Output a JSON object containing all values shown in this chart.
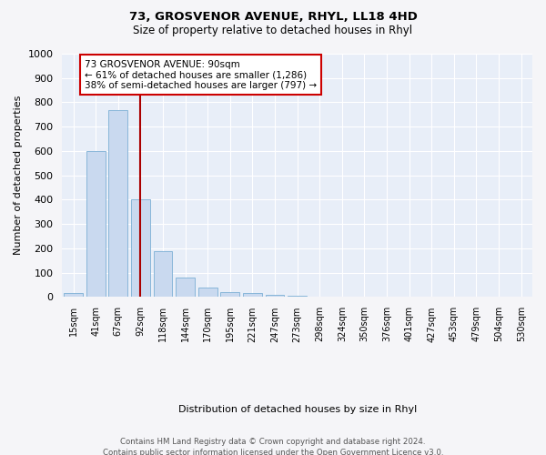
{
  "title1": "73, GROSVENOR AVENUE, RHYL, LL18 4HD",
  "title2": "Size of property relative to detached houses in Rhyl",
  "xlabel": "Distribution of detached houses by size in Rhyl",
  "ylabel": "Number of detached properties",
  "footnote1": "Contains HM Land Registry data © Crown copyright and database right 2024.",
  "footnote2": "Contains public sector information licensed under the Open Government Licence v3.0.",
  "annotation_line1": "73 GROSVENOR AVENUE: 90sqm",
  "annotation_line2": "← 61% of detached houses are smaller (1,286)",
  "annotation_line3": "38% of semi-detached houses are larger (797) →",
  "bar_labels": [
    "15sqm",
    "41sqm",
    "67sqm",
    "92sqm",
    "118sqm",
    "144sqm",
    "170sqm",
    "195sqm",
    "221sqm",
    "247sqm",
    "273sqm",
    "298sqm",
    "324sqm",
    "350sqm",
    "376sqm",
    "401sqm",
    "427sqm",
    "453sqm",
    "479sqm",
    "504sqm",
    "530sqm"
  ],
  "bar_values": [
    15,
    600,
    770,
    400,
    190,
    80,
    40,
    20,
    15,
    10,
    5,
    0,
    0,
    0,
    0,
    0,
    0,
    0,
    0,
    0,
    0
  ],
  "bar_color": "#c9d9ef",
  "bar_edge_color": "#7bafd4",
  "vline_x": 3,
  "vline_color": "#aa0000",
  "ylim": [
    0,
    1000
  ],
  "yticks": [
    0,
    100,
    200,
    300,
    400,
    500,
    600,
    700,
    800,
    900,
    1000
  ],
  "background_color": "#e8eef8",
  "grid_color": "#ffffff",
  "annotation_edge_color": "#cc0000",
  "fig_bg": "#f5f5f8"
}
